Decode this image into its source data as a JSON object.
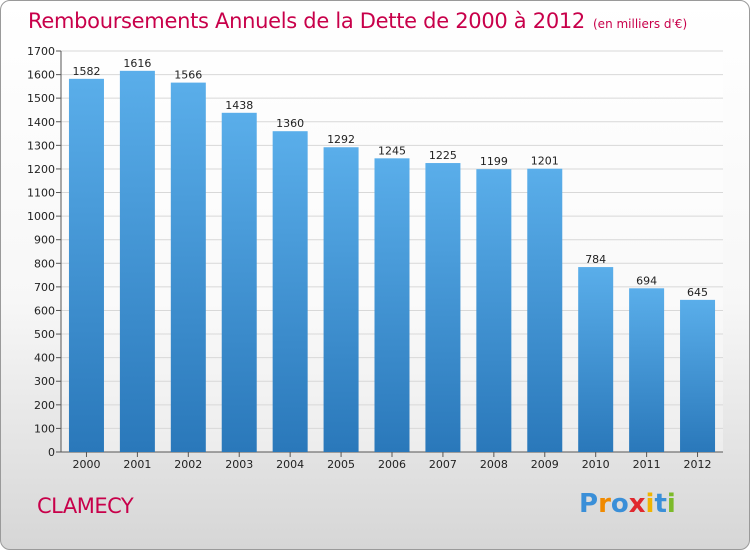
{
  "header": {
    "title": "Remboursements Annuels de la Dette de 2000 à 2012",
    "unit": "(en milliers d'€)"
  },
  "footer": {
    "city": "CLAMECY",
    "logo": [
      {
        "char": "P",
        "color": "#3a8fd8"
      },
      {
        "char": "r",
        "color": "#f08a00"
      },
      {
        "char": "o",
        "color": "#3a8fd8"
      },
      {
        "char": "x",
        "color": "#e0282e"
      },
      {
        "char": "i",
        "color": "#f0b400"
      },
      {
        "char": "t",
        "color": "#3a8fd8"
      },
      {
        "char": "i",
        "color": "#7cba2a"
      }
    ]
  },
  "chart_data": {
    "type": "bar",
    "categories": [
      "2000",
      "2001",
      "2002",
      "2003",
      "2004",
      "2005",
      "2006",
      "2007",
      "2008",
      "2009",
      "2010",
      "2011",
      "2012"
    ],
    "values": [
      1582,
      1616,
      1566,
      1438,
      1360,
      1292,
      1245,
      1225,
      1199,
      1201,
      784,
      694,
      645
    ],
    "ylim": [
      0,
      1700
    ],
    "yticks": [
      0,
      100,
      200,
      300,
      400,
      500,
      600,
      700,
      800,
      900,
      1000,
      1100,
      1200,
      1300,
      1400,
      1500,
      1600,
      1700
    ],
    "grid": true,
    "bar_color_top": "#5aaeea",
    "bar_color_bottom": "#2a78ba",
    "grid_color": "#d8d8d8"
  }
}
